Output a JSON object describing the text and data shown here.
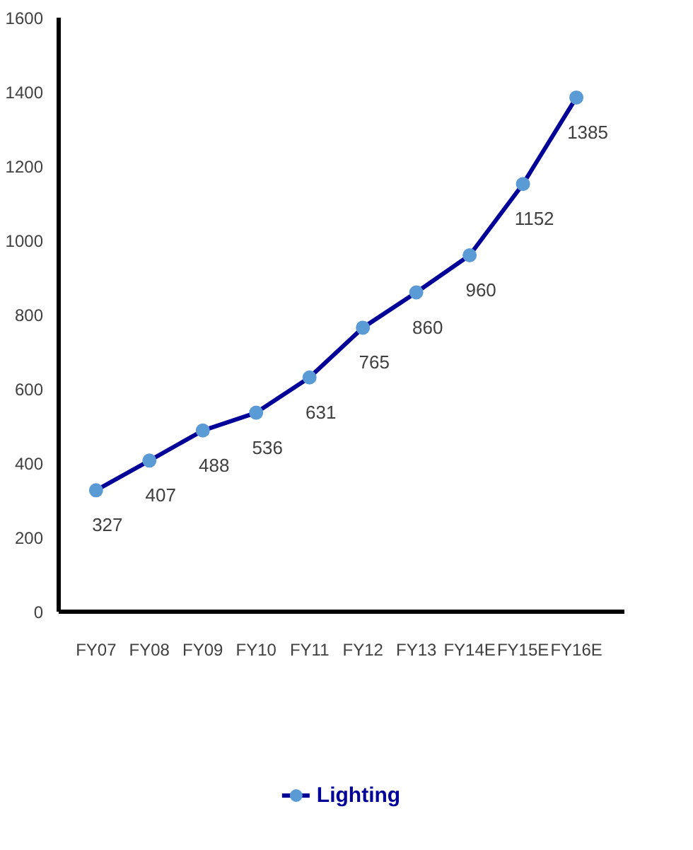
{
  "chart_data": {
    "type": "line",
    "categories": [
      "FY07",
      "FY08",
      "FY09",
      "FY10",
      "FY11",
      "FY12",
      "FY13",
      "FY14E",
      "FY15E",
      "FY16E"
    ],
    "series": [
      {
        "name": "Lighting",
        "color": "#000099",
        "colors": [
          "#5b9bd5",
          "#5b9bd5",
          "#5b9bd5",
          "#5b9bd5",
          "#5b9bd5",
          "#5b9bd5",
          "#5b9bd5",
          "#5b9bd5",
          "#5b9bd5",
          "#5b9bd5"
        ],
        "values": [
          327,
          407,
          488,
          536,
          631,
          765,
          860,
          960,
          1152,
          1385
        ]
      }
    ],
    "ylim": [
      0,
      1600
    ],
    "yticks": [
      0,
      200,
      400,
      600,
      800,
      1000,
      1200,
      1400,
      1600
    ],
    "data_labels": true,
    "marker": "circle",
    "grid": false,
    "legend": "bottom"
  }
}
